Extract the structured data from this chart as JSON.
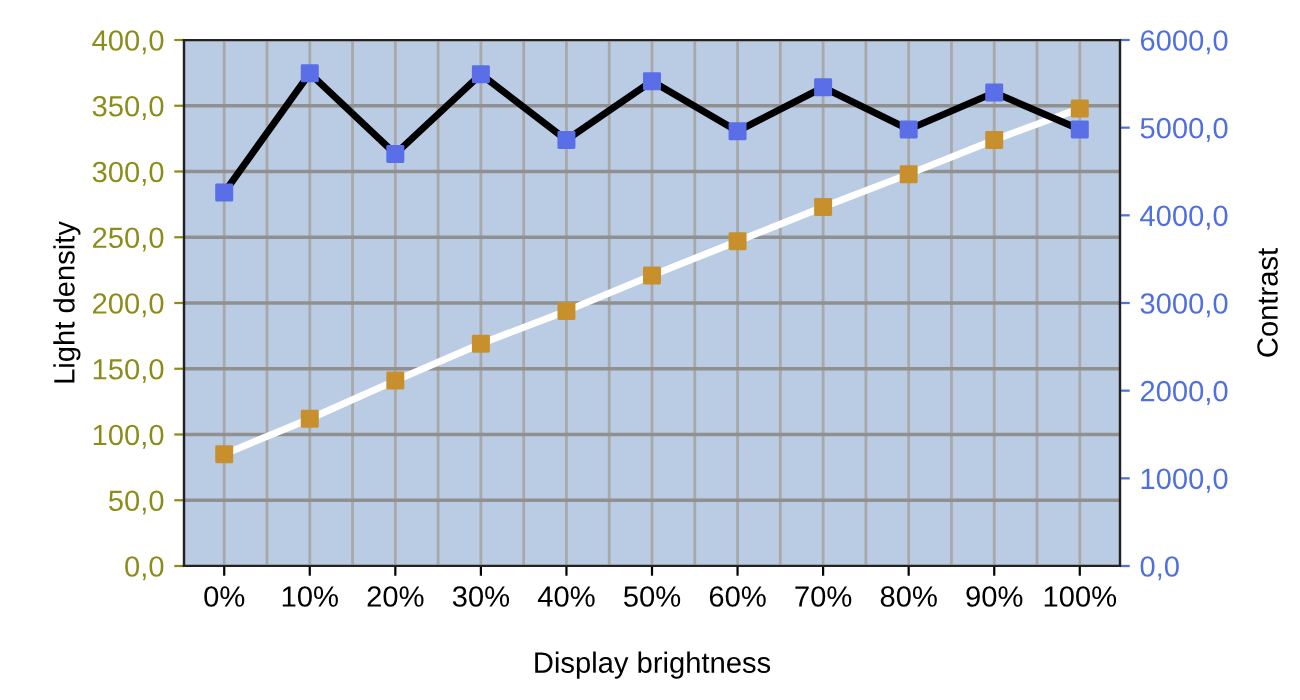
{
  "chart_data": {
    "type": "line",
    "xlabel": "Display brightness",
    "ylabel": "Light density",
    "y2label": "Contrast",
    "categories": [
      "0%",
      "10%",
      "20%",
      "30%",
      "40%",
      "50%",
      "60%",
      "70%",
      "80%",
      "90%",
      "100%"
    ],
    "series": [
      {
        "color": "#ffffff",
        "colors": [
          "#c8902c",
          "#c8902c",
          "#c8902c",
          "#c8902c",
          "#c8902c",
          "#c8902c",
          "#c8902c",
          "#c8902c",
          "#c8902c",
          "#c8902c",
          "#c8902c"
        ],
        "values": [
          85,
          112,
          141,
          169,
          194,
          221,
          247,
          273,
          298,
          324,
          348
        ]
      },
      {
        "color": "#000000",
        "axis": "y2",
        "colors": [
          "#5a6ee8",
          "#5a6ee8",
          "#5a6ee8",
          "#5a6ee8",
          "#5a6ee8",
          "#5a6ee8",
          "#5a6ee8",
          "#5a6ee8",
          "#5a6ee8",
          "#5a6ee8",
          "#5a6ee8"
        ],
        "values": [
          4260,
          5620,
          4700,
          5610,
          4860,
          5530,
          4960,
          5460,
          4980,
          5400,
          4980
        ]
      }
    ],
    "ylim": [
      0,
      400
    ],
    "yticks": [
      {
        "value": 0,
        "label": "0,0"
      },
      {
        "value": 50,
        "label": "50,0"
      },
      {
        "value": 100,
        "label": "100,0"
      },
      {
        "value": 150,
        "label": "150,0"
      },
      {
        "value": 200,
        "label": "200,0"
      },
      {
        "value": 250,
        "label": "250,0"
      },
      {
        "value": 300,
        "label": "300,0"
      },
      {
        "value": 350,
        "label": "350,0"
      },
      {
        "value": 400,
        "label": "400,0"
      }
    ],
    "y2lim": [
      0,
      6000
    ],
    "y2ticks": [
      {
        "value": 0,
        "label": "0,0"
      },
      {
        "value": 1000,
        "label": "1000,0"
      },
      {
        "value": 2000,
        "label": "2000,0"
      },
      {
        "value": 3000,
        "label": "3000,0"
      },
      {
        "value": 4000,
        "label": "4000,0"
      },
      {
        "value": 5000,
        "label": "5000,0"
      },
      {
        "value": 6000,
        "label": "6000,0"
      }
    ],
    "grid": true,
    "marker": "square",
    "line_style": "solid"
  }
}
